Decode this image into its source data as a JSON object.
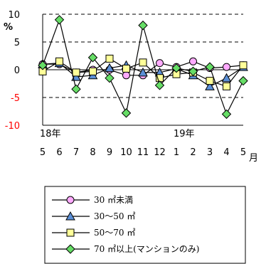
{
  "chart_data": {
    "type": "line",
    "ylabel": "%",
    "ylim": [
      -10,
      10
    ],
    "yticks": [
      {
        "label": "10",
        "value": 10,
        "color": "#000000"
      },
      {
        "label": "5",
        "value": 5,
        "color": "#000000"
      },
      {
        "label": "0",
        "value": 0,
        "color": "#000000"
      },
      {
        "label": "-5",
        "value": -5,
        "color": "#ff0000"
      },
      {
        "label": "-10",
        "value": -10,
        "color": "#ff0000"
      }
    ],
    "dashed_gridlines": [
      10,
      5,
      -5
    ],
    "x": [
      "5",
      "6",
      "7",
      "8",
      "9",
      "10",
      "11",
      "12",
      "1",
      "2",
      "3",
      "4",
      "5"
    ],
    "year_labels": [
      {
        "label": "18年",
        "at_index": 0
      },
      {
        "label": "19年",
        "at_index": 8
      }
    ],
    "x_unit": "月",
    "series": [
      {
        "name": "30 ㎡未満",
        "marker": "circle",
        "fill": "#ffaaff",
        "values": [
          1.0,
          1.0,
          -0.5,
          0.0,
          0.0,
          -1.0,
          -1.0,
          1.2,
          0.5,
          1.5,
          0.3,
          0.5,
          0.8
        ]
      },
      {
        "name": "30～50 ㎡",
        "marker": "triangle",
        "fill": "#5b8fd6",
        "values": [
          1.0,
          1.2,
          -1.3,
          -1.0,
          0.3,
          0.8,
          -0.5,
          -0.5,
          0.2,
          -1.0,
          -3.0,
          -1.5,
          0.5
        ]
      },
      {
        "name": "50～70 ㎡",
        "marker": "square",
        "fill": "#ffff99",
        "values": [
          -0.3,
          1.5,
          -0.5,
          -0.3,
          2.0,
          0.2,
          1.3,
          -1.5,
          -0.8,
          -0.5,
          -2.0,
          -3.0,
          0.8
        ]
      },
      {
        "name": "70 ㎡以上(マンションのみ)",
        "marker": "diamond",
        "fill": "#66dd66",
        "values": [
          0.8,
          9.0,
          -3.5,
          2.2,
          -1.5,
          -7.8,
          8.0,
          -2.8,
          0.3,
          -0.3,
          0.5,
          -8.0,
          -2.0
        ]
      }
    ]
  }
}
